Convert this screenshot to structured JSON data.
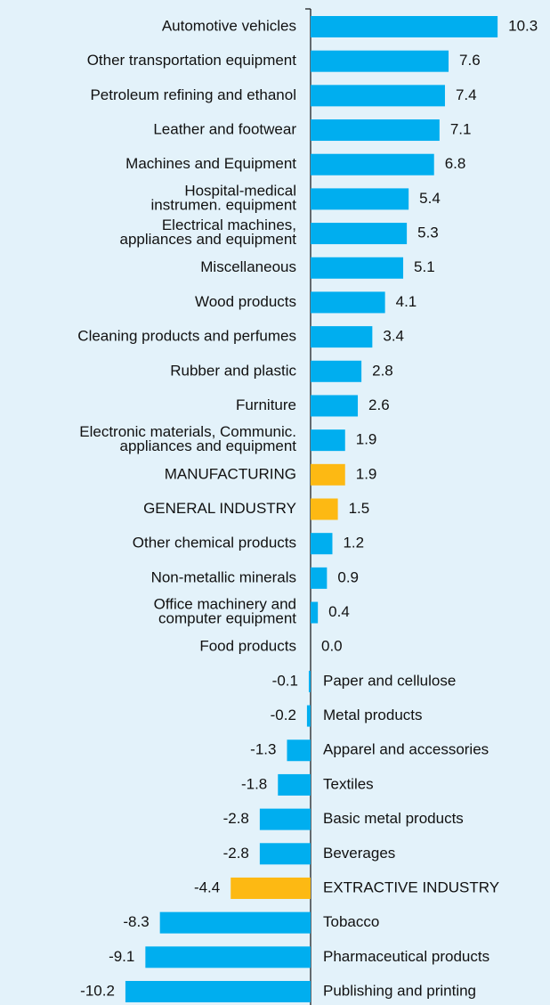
{
  "chart_data": {
    "type": "bar",
    "orientation": "horizontal",
    "categories": [
      "Automotive vehicles",
      "Other transportation equipment",
      "Petroleum refining and ethanol",
      "Leather and footwear",
      "Machines and Equipment",
      "Hospital-medical\ninstrumen. equipment",
      "Electrical machines,\nappliances and equipment",
      "Miscellaneous",
      "Wood products",
      "Cleaning products and perfumes",
      "Rubber and plastic",
      "Furniture",
      "Electronic materials, Communic.\nappliances and equipment",
      "MANUFACTURING",
      "GENERAL INDUSTRY",
      "Other chemical products",
      "Non-metallic minerals",
      "Office machinery and\ncomputer equipment",
      "Food products",
      "Paper and cellulose",
      "Metal products",
      "Apparel and accessories",
      "Textiles",
      "Basic metal products",
      "Beverages",
      "EXTRACTIVE INDUSTRY",
      "Tobacco",
      "Pharmaceutical products",
      "Publishing and printing"
    ],
    "values": [
      10.3,
      7.6,
      7.4,
      7.1,
      6.8,
      5.4,
      5.3,
      5.1,
      4.1,
      3.4,
      2.8,
      2.6,
      1.9,
      1.9,
      1.5,
      1.2,
      0.9,
      0.4,
      0.0,
      -0.1,
      -0.2,
      -1.3,
      -1.8,
      -2.8,
      -2.8,
      -4.4,
      -8.3,
      -9.1,
      -10.2
    ],
    "value_labels": [
      "10.3",
      "7.6",
      "7.4",
      "7.1",
      "6.8",
      "5.4",
      "5.3",
      "5.1",
      "4.1",
      "3.4",
      "2.8",
      "2.6",
      "1.9",
      "1.9",
      "1.5",
      "1.2",
      "0.9",
      "0.4",
      "0.0",
      "-0.1",
      "-0.2",
      "-1.3",
      "-1.8",
      "-2.8",
      "-2.8",
      "-4.4",
      "-8.3",
      "-9.1",
      "-10.2"
    ],
    "colors": [
      "#00aeef",
      "#00aeef",
      "#00aeef",
      "#00aeef",
      "#00aeef",
      "#00aeef",
      "#00aeef",
      "#00aeef",
      "#00aeef",
      "#00aeef",
      "#00aeef",
      "#00aeef",
      "#00aeef",
      "#fdb913",
      "#fdb913",
      "#00aeef",
      "#00aeef",
      "#00aeef",
      "#00aeef",
      "#00aeef",
      "#00aeef",
      "#00aeef",
      "#00aeef",
      "#00aeef",
      "#00aeef",
      "#fdb913",
      "#00aeef",
      "#00aeef",
      "#00aeef"
    ]
  }
}
